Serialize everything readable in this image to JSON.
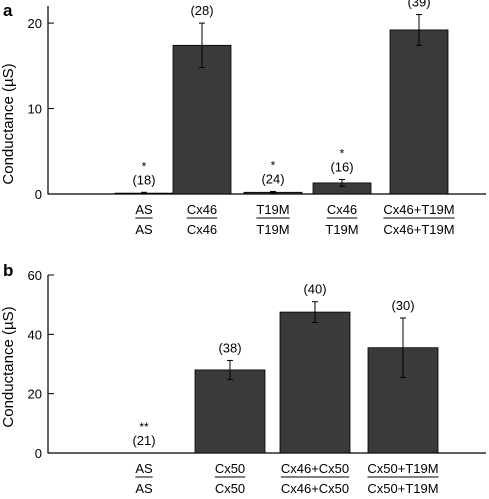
{
  "chart_data": [
    {
      "panel": "a",
      "type": "bar",
      "ylabel": "Conductance (µS)",
      "ylim": [
        0,
        22
      ],
      "yticks": [
        "0",
        "10",
        "20"
      ],
      "categories": [
        {
          "top": "AS",
          "bottom": "AS"
        },
        {
          "top": "Cx46",
          "bottom": "Cx46"
        },
        {
          "top": "T19M",
          "bottom": "T19M"
        },
        {
          "top": "Cx46",
          "bottom": "T19M"
        },
        {
          "top": "Cx46+T19M",
          "bottom": "Cx46+T19M"
        }
      ],
      "values": [
        0.1,
        17.4,
        0.2,
        1.3,
        19.2
      ],
      "errors": [
        0.1,
        2.6,
        0.1,
        0.4,
        1.8
      ],
      "n_labels": [
        "(18)",
        "(28)",
        "(24)",
        "(16)",
        "(39)"
      ],
      "significance": [
        "*",
        "",
        "*",
        "*",
        ""
      ],
      "bar_color": "#3a3a3a"
    },
    {
      "panel": "b",
      "type": "bar",
      "ylabel": "Conductance (µS)",
      "ylim": [
        0,
        60
      ],
      "yticks": [
        "0",
        "20",
        "40",
        "60"
      ],
      "categories": [
        {
          "top": "AS",
          "bottom": "AS"
        },
        {
          "top": "Cx50",
          "bottom": "Cx50"
        },
        {
          "top": "Cx46+Cx50",
          "bottom": "Cx46+Cx50"
        },
        {
          "top": "Cx50+T19M",
          "bottom": "Cx50+T19M"
        }
      ],
      "values": [
        0,
        28,
        47.5,
        35.5
      ],
      "errors": [
        0,
        3.2,
        3.5,
        10
      ],
      "n_labels": [
        "(21)",
        "(38)",
        "(40)",
        "(30)"
      ],
      "significance": [
        "**",
        "",
        "",
        ""
      ],
      "bar_color": "#3a3a3a"
    }
  ]
}
